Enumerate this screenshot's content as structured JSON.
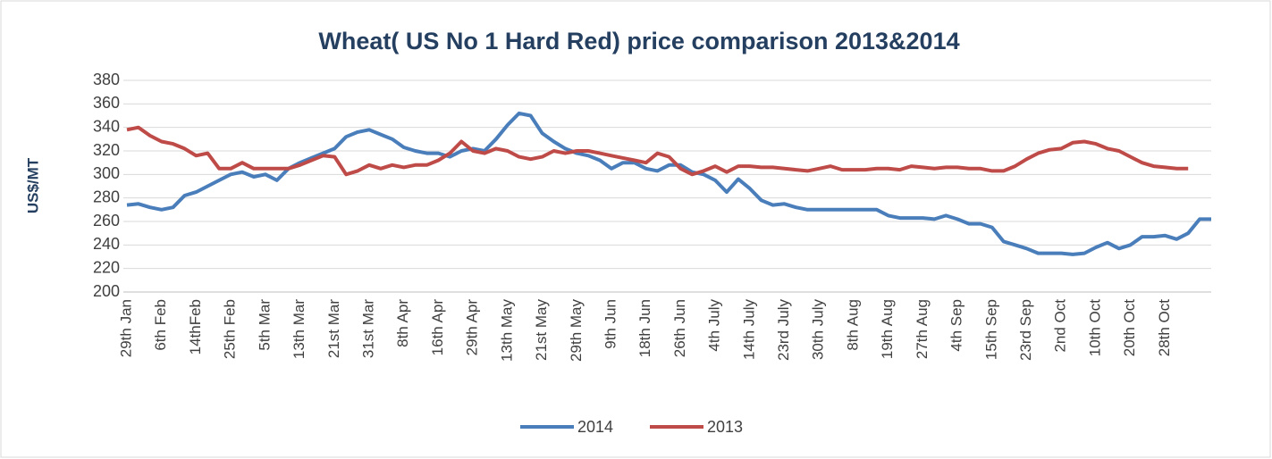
{
  "chart_data": {
    "type": "line",
    "title": "Wheat( US No 1 Hard Red) price comparison 2013&2014",
    "y_label": "US$/MT",
    "categories": [
      "29th Jan",
      null,
      null,
      "6th Feb",
      null,
      null,
      "14thFeb",
      null,
      null,
      "25th Feb",
      null,
      null,
      "5th Mar",
      null,
      null,
      "13th Mar",
      null,
      null,
      "21st Mar",
      null,
      null,
      "31st Mar",
      null,
      null,
      "8th Apr",
      null,
      null,
      "16th Apr",
      null,
      null,
      "29th Apr",
      null,
      null,
      "13th May",
      null,
      null,
      "21st May",
      null,
      null,
      "29th May",
      null,
      null,
      "9th Jun",
      null,
      null,
      "18th Jun",
      null,
      null,
      "26th Jun",
      null,
      null,
      "4th July",
      null,
      null,
      "14th July",
      null,
      null,
      "23rd July",
      null,
      null,
      "30th July",
      null,
      null,
      "8th Aug",
      null,
      null,
      "19th Aug",
      null,
      null,
      "27th Aug",
      null,
      null,
      "4th Sep",
      null,
      null,
      "15th Sep",
      null,
      null,
      "23rd Sep",
      null,
      null,
      "2nd Oct",
      null,
      null,
      "10th Oct",
      null,
      null,
      "20th Oct",
      null,
      null,
      "28th Oct",
      null,
      null,
      null,
      null
    ],
    "series": [
      {
        "name": "2014",
        "color": "#4a7ebb",
        "values": [
          274,
          275,
          272,
          270,
          272,
          282,
          285,
          290,
          295,
          300,
          302,
          298,
          300,
          295,
          305,
          310,
          314,
          318,
          322,
          332,
          336,
          338,
          334,
          330,
          323,
          320,
          318,
          318,
          315,
          320,
          322,
          320,
          330,
          342,
          352,
          350,
          335,
          328,
          322,
          318,
          316,
          312,
          305,
          310,
          310,
          305,
          303,
          308,
          308,
          302,
          300,
          295,
          285,
          296,
          288,
          278,
          274,
          275,
          272,
          270,
          270,
          270,
          270,
          270,
          270,
          270,
          265,
          263,
          263,
          263,
          262,
          265,
          262,
          258,
          258,
          255,
          243,
          240,
          237,
          233,
          233,
          233,
          232,
          233,
          238,
          242,
          237,
          240,
          247,
          247,
          248,
          245,
          250,
          262,
          262
        ]
      },
      {
        "name": "2013",
        "color": "#be4b48",
        "values": [
          338,
          340,
          333,
          328,
          326,
          322,
          316,
          318,
          305,
          305,
          310,
          305,
          305,
          305,
          305,
          308,
          312,
          316,
          315,
          300,
          303,
          308,
          305,
          308,
          306,
          308,
          308,
          312,
          318,
          328,
          320,
          318,
          322,
          320,
          315,
          313,
          315,
          320,
          318,
          320,
          320,
          318,
          316,
          314,
          312,
          310,
          318,
          315,
          305,
          300,
          303,
          307,
          302,
          307,
          307,
          306,
          306,
          305,
          304,
          303,
          305,
          307,
          304,
          304,
          304,
          305,
          305,
          304,
          307,
          306,
          305,
          306,
          306,
          305,
          305,
          303,
          303,
          307,
          313,
          318,
          321,
          322,
          327,
          328,
          326,
          322,
          320,
          315,
          310,
          307,
          306,
          305,
          305,
          null,
          null
        ]
      }
    ],
    "ylim": [
      200,
      380
    ],
    "yticks": [
      200,
      220,
      240,
      260,
      280,
      300,
      320,
      340,
      360,
      380
    ],
    "grid": true,
    "legend": "bottom"
  }
}
